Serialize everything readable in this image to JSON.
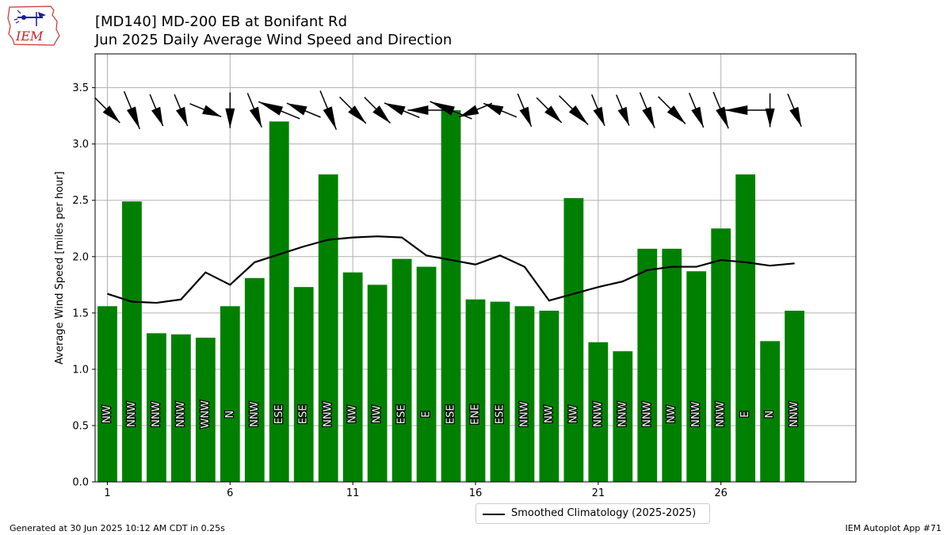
{
  "header": {
    "title_line1": "[MD140] MD-200 EB at Bonifant Rd",
    "title_line2": "Jun 2025 Daily Average Wind Speed and Direction"
  },
  "logo": {
    "text": "IEM"
  },
  "footer": {
    "generated": "Generated at 30 Jun 2025 10:12 AM CDT in 0.25s",
    "app": "IEM Autoplot App #71"
  },
  "colors": {
    "bars": "#008000",
    "climatology": "#000000",
    "grid": "#b0b0b0",
    "arrows": "#000000"
  },
  "chart_data": {
    "type": "bar",
    "title": "[MD140] MD-200 EB at Bonifant Rd",
    "subtitle": "Jun 2025 Daily Average Wind Speed and Direction",
    "xlabel": "",
    "ylabel": "Average Wind Speed [miles per hour]",
    "xlim": [
      0.5,
      31.5
    ],
    "ylim": [
      0,
      3.8
    ],
    "xticks": [
      1,
      6,
      11,
      16,
      21,
      26
    ],
    "yticks": [
      0.0,
      0.5,
      1.0,
      1.5,
      2.0,
      2.5,
      3.0,
      3.5
    ],
    "grid": true,
    "legend_position": "bottom-center",
    "days": [
      1,
      2,
      3,
      4,
      5,
      6,
      7,
      8,
      9,
      10,
      11,
      12,
      13,
      14,
      15,
      16,
      17,
      18,
      19,
      20,
      21,
      22,
      23,
      24,
      25,
      26,
      27,
      28,
      29
    ],
    "speeds": [
      1.56,
      2.49,
      1.32,
      1.31,
      1.28,
      1.56,
      1.81,
      3.2,
      1.73,
      2.73,
      1.86,
      1.75,
      1.98,
      1.91,
      3.3,
      1.62,
      1.6,
      1.56,
      1.52,
      2.52,
      1.24,
      1.16,
      2.07,
      2.07,
      1.87,
      2.25,
      2.73,
      1.25,
      1.52
    ],
    "directions": [
      "NW",
      "NNW",
      "NNW",
      "NNW",
      "WNW",
      "N",
      "NNW",
      "ESE",
      "ESE",
      "NNW",
      "NW",
      "NW",
      "ESE",
      "E",
      "ESE",
      "ENE",
      "ESE",
      "NNW",
      "NW",
      "NW",
      "NNW",
      "NNW",
      "NNW",
      "NW",
      "NNW",
      "NNW",
      "E",
      "N",
      "NNW"
    ],
    "climatology": {
      "name": "Smoothed Climatology (2025-2025)",
      "values": [
        1.67,
        1.6,
        1.59,
        1.62,
        1.86,
        1.75,
        1.95,
        2.02,
        2.09,
        2.15,
        2.17,
        2.18,
        2.17,
        2.01,
        1.97,
        1.93,
        2.01,
        1.91,
        1.61,
        1.67,
        1.73,
        1.78,
        1.88,
        1.91,
        1.91,
        1.97,
        1.95,
        1.92,
        1.94
      ]
    }
  }
}
